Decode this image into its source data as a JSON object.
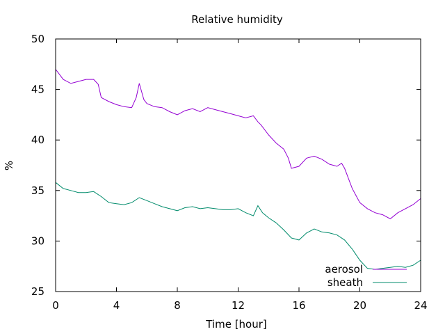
{
  "chart_data": {
    "type": "line",
    "title": "Relative humidity",
    "xlabel": "Time [hour]",
    "ylabel": "%",
    "xlim": [
      0,
      24
    ],
    "ylim": [
      25,
      50
    ],
    "xticks": [
      0,
      4,
      8,
      12,
      16,
      20,
      24
    ],
    "yticks": [
      25,
      30,
      35,
      40,
      45,
      50
    ],
    "grid": false,
    "legend_position": "bottom-right",
    "series": [
      {
        "name": "aerosol",
        "color": "#9400d3",
        "x": [
          0,
          0.5,
          1,
          1.5,
          2,
          2.5,
          2.8,
          3,
          3.5,
          4,
          4.5,
          5,
          5.3,
          5.5,
          5.8,
          6,
          6.5,
          7,
          7.5,
          8,
          8.5,
          9,
          9.5,
          10,
          10.5,
          11,
          11.5,
          12,
          12.5,
          13,
          13.3,
          13.5,
          14,
          14.5,
          15,
          15.3,
          15.5,
          16,
          16.5,
          17,
          17.5,
          18,
          18.5,
          18.8,
          19,
          19.5,
          20,
          20.5,
          21,
          21.5,
          22,
          22.5,
          23,
          23.5,
          24
        ],
        "y": [
          47,
          46,
          45.6,
          45.8,
          46,
          46,
          45.5,
          44.2,
          43.8,
          43.5,
          43.3,
          43.2,
          44.2,
          45.6,
          44,
          43.6,
          43.3,
          43.2,
          42.8,
          42.5,
          42.9,
          43.1,
          42.8,
          43.2,
          43,
          42.8,
          42.6,
          42.4,
          42.2,
          42.4,
          41.8,
          41.5,
          40.5,
          39.7,
          39.1,
          38.2,
          37.2,
          37.4,
          38.2,
          38.4,
          38.1,
          37.6,
          37.4,
          37.7,
          37.2,
          35.2,
          33.8,
          33.2,
          32.8,
          32.6,
          32.2,
          32.8,
          33.2,
          33.6,
          34.2
        ]
      },
      {
        "name": "sheath",
        "color": "#008b6b",
        "x": [
          0,
          0.5,
          1,
          1.5,
          2,
          2.5,
          3,
          3.5,
          4,
          4.5,
          5,
          5.5,
          6,
          6.5,
          7,
          7.5,
          8,
          8.5,
          9,
          9.5,
          10,
          10.5,
          11,
          11.5,
          12,
          12.5,
          13,
          13.3,
          13.6,
          14,
          14.5,
          15,
          15.5,
          16,
          16.5,
          17,
          17.5,
          18,
          18.5,
          19,
          19.5,
          20,
          20.5,
          21,
          21.5,
          22,
          22.5,
          23,
          23.5,
          24
        ],
        "y": [
          35.8,
          35.2,
          35,
          34.8,
          34.8,
          34.9,
          34.4,
          33.8,
          33.7,
          33.6,
          33.8,
          34.3,
          34,
          33.7,
          33.4,
          33.2,
          33,
          33.3,
          33.4,
          33.2,
          33.3,
          33.2,
          33.1,
          33.1,
          33.2,
          32.8,
          32.5,
          33.5,
          32.8,
          32.3,
          31.8,
          31.1,
          30.3,
          30.1,
          30.8,
          31.2,
          30.9,
          30.8,
          30.6,
          30.1,
          29.2,
          28.1,
          27.3,
          27.2,
          27.3,
          27.4,
          27.5,
          27.4,
          27.6,
          28.1
        ]
      }
    ]
  }
}
